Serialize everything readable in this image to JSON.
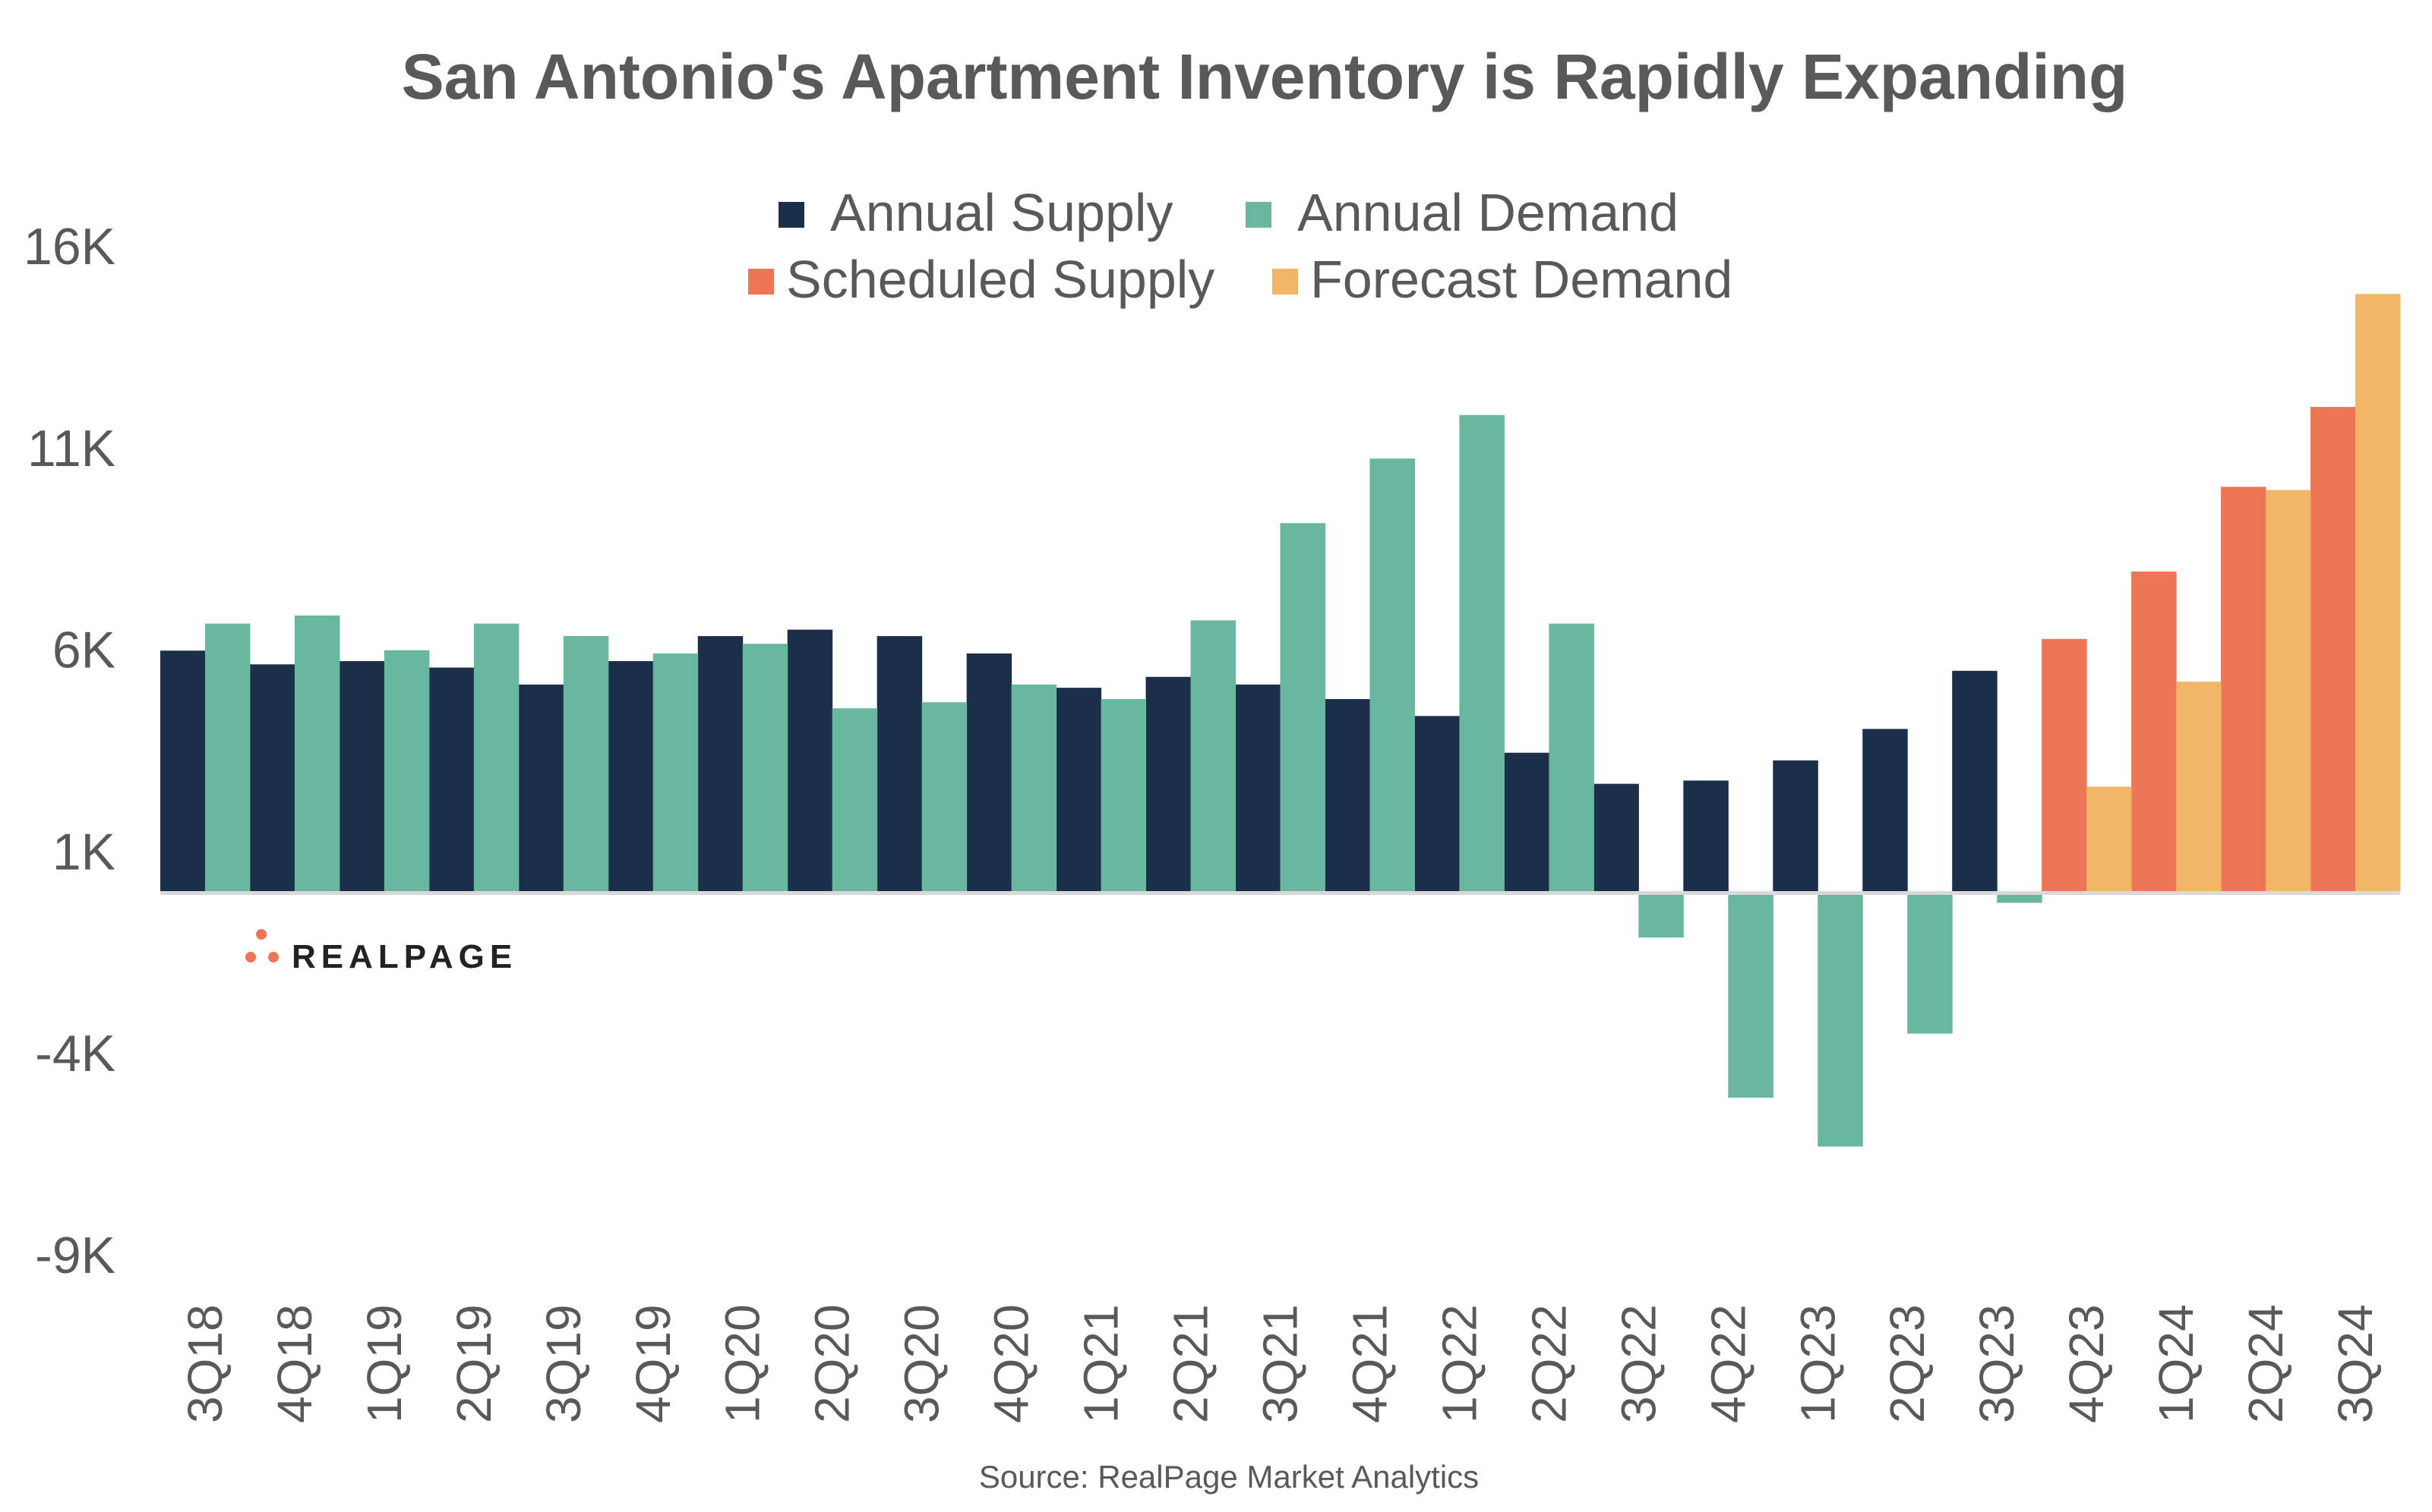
{
  "chart_data": {
    "type": "bar",
    "title": "San Antonio's Apartment Inventory is Rapidly Expanding",
    "source": "Source: RealPage Market Analytics",
    "logo_text": "REALPAGE",
    "xlabel": "",
    "ylabel": "",
    "ylim": [
      -9,
      16
    ],
    "y_ticks": [
      16,
      11,
      6,
      1,
      -4,
      -9
    ],
    "y_tick_labels": [
      "16K",
      "11K",
      "6K",
      "1K",
      "-4K",
      "-9K"
    ],
    "grid": false,
    "legend_position": "top-center",
    "categories": [
      "3Q18",
      "4Q18",
      "1Q19",
      "2Q19",
      "3Q19",
      "4Q19",
      "1Q20",
      "2Q20",
      "3Q20",
      "4Q20",
      "1Q21",
      "2Q21",
      "3Q21",
      "4Q21",
      "1Q22",
      "2Q22",
      "3Q22",
      "4Q22",
      "1Q23",
      "2Q23",
      "3Q23",
      "4Q23",
      "1Q24",
      "2Q24",
      "3Q24"
    ],
    "series": [
      {
        "name": "Annual Supply",
        "color": "#1c2f4a",
        "slot": 0,
        "values": [
          5.97,
          5.63,
          5.71,
          5.55,
          5.13,
          5.71,
          6.33,
          6.49,
          6.33,
          5.9,
          5.05,
          5.32,
          5.13,
          4.77,
          4.35,
          3.44,
          2.67,
          2.75,
          3.25,
          4.03,
          5.47,
          null,
          null,
          null,
          null
        ]
      },
      {
        "name": "Annual Demand",
        "color": "#68b79e",
        "slot": 1,
        "values": [
          6.64,
          6.84,
          5.98,
          6.64,
          6.33,
          5.9,
          6.14,
          4.54,
          4.69,
          5.13,
          4.77,
          6.72,
          9.13,
          10.73,
          11.81,
          6.64,
          -1.14,
          -5.11,
          -6.32,
          -3.52,
          -0.28,
          null,
          null,
          null,
          null
        ]
      },
      {
        "name": "Scheduled Supply",
        "color": "#ec7656",
        "slot": 0,
        "values": [
          null,
          null,
          null,
          null,
          null,
          null,
          null,
          null,
          null,
          null,
          null,
          null,
          null,
          null,
          null,
          null,
          null,
          null,
          null,
          null,
          null,
          6.26,
          7.93,
          10.03,
          12.01
        ]
      },
      {
        "name": "Forecast Demand",
        "color": "#f1b767",
        "slot": 1,
        "values": [
          null,
          null,
          null,
          null,
          null,
          null,
          null,
          null,
          null,
          null,
          null,
          null,
          null,
          null,
          null,
          null,
          null,
          null,
          null,
          null,
          null,
          2.6,
          5.2,
          9.95,
          14.81
        ]
      }
    ]
  }
}
